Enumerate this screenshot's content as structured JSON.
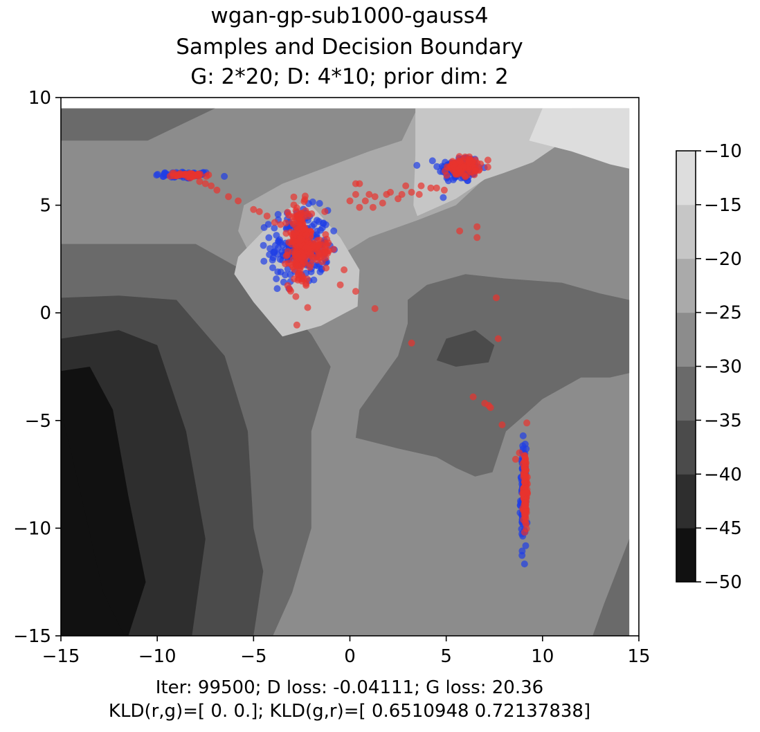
{
  "chart_data": {
    "type": "scatter",
    "title_lines": [
      "wgan-gp-sub1000-gauss4",
      "Samples and Decision Boundary",
      "G: 2*20; D: 4*10; prior dim: 2"
    ],
    "xlim": [
      -15,
      15
    ],
    "ylim": [
      -15,
      10
    ],
    "x_ticks": [
      -15,
      -10,
      -5,
      0,
      5,
      10,
      15
    ],
    "y_ticks": [
      -15,
      -10,
      -5,
      0,
      5,
      10
    ],
    "x_tick_labels": [
      "−15",
      "−10",
      "−5",
      "0",
      "5",
      "10",
      "15"
    ],
    "y_tick_labels": [
      "−15",
      "−10",
      "−5",
      "0",
      "5",
      "10"
    ],
    "grid": false,
    "footer_lines": [
      "Iter: 99500; D loss: -0.04111; G loss: 20.36",
      "KLD(r,g)=[ 0.  0.]; KLD(g,r)=[ 0.6510948   0.72137838]"
    ],
    "contour": {
      "levels": [
        -50,
        -45,
        -40,
        -35,
        -30,
        -25,
        -20,
        -15,
        -10
      ],
      "colors": [
        "#111111",
        "#2e2e2e",
        "#4b4b4b",
        "#6a6a6a",
        "#8c8c8c",
        "#aaaaaa",
        "#c6c6c6",
        "#dddddd",
        "#f0f0f0"
      ],
      "colorbar_ticks": [
        -50,
        -45,
        -40,
        -35,
        -30,
        -25,
        -20,
        -15,
        -10
      ],
      "colorbar_tick_labels": [
        "−50",
        "−45",
        "−40",
        "−35",
        "−30",
        "−25",
        "−20",
        "−15",
        "−10"
      ],
      "regions": [
        {
          "value": -27.5,
          "points": [
            [
              -15,
              9.5
            ],
            [
              14.5,
              9.5
            ],
            [
              14.5,
              -15
            ],
            [
              -15,
              -15
            ]
          ]
        },
        {
          "value": -32.5,
          "points": [
            [
              -15,
              9.5
            ],
            [
              -7,
              9.5
            ],
            [
              -10.5,
              8
            ],
            [
              -15,
              8
            ]
          ]
        },
        {
          "value": -32.5,
          "points": [
            [
              -15,
              3.2
            ],
            [
              -8,
              3.2
            ],
            [
              -6,
              2.2
            ],
            [
              -4.5,
              1.5
            ],
            [
              -2,
              -1
            ],
            [
              -1,
              -2.5
            ],
            [
              -2,
              -5.5
            ],
            [
              -2,
              -10
            ],
            [
              -3,
              -13
            ],
            [
              -4,
              -15
            ],
            [
              -15,
              -15
            ]
          ]
        },
        {
          "value": -37.5,
          "points": [
            [
              -15,
              0.7
            ],
            [
              -12,
              0.8
            ],
            [
              -9,
              0.6
            ],
            [
              -6.5,
              -2
            ],
            [
              -5.3,
              -5.5
            ],
            [
              -5,
              -10
            ],
            [
              -4.5,
              -12
            ],
            [
              -5,
              -15
            ],
            [
              -15,
              -15
            ]
          ]
        },
        {
          "value": -42.5,
          "points": [
            [
              -15,
              -1.2
            ],
            [
              -12,
              -0.8
            ],
            [
              -10,
              -1.5
            ],
            [
              -8.5,
              -5.5
            ],
            [
              -7.5,
              -10.5
            ],
            [
              -8.2,
              -15
            ],
            [
              -15,
              -15
            ]
          ]
        },
        {
          "value": -47.5,
          "points": [
            [
              -15,
              -2.7
            ],
            [
              -13.5,
              -2.5
            ],
            [
              -12.3,
              -4.5
            ],
            [
              -11.5,
              -8.5
            ],
            [
              -10.6,
              -12.5
            ],
            [
              -11.5,
              -15
            ],
            [
              -15,
              -15
            ]
          ]
        },
        {
          "value": -50,
          "points": [
            [
              -15,
              -4.5
            ],
            [
              -14.2,
              -7.5
            ],
            [
              -12.8,
              -13
            ],
            [
              -11.7,
              -15
            ],
            [
              -15,
              -15
            ]
          ]
        },
        {
          "value": -32.5,
          "points": [
            [
              3,
              -0.5
            ],
            [
              2.5,
              -2
            ],
            [
              0.5,
              -4.5
            ],
            [
              0.3,
              -5.8
            ],
            [
              2.5,
              -6.3
            ],
            [
              4.5,
              -6.7
            ],
            [
              5.5,
              -7.2
            ],
            [
              6.5,
              -7.6
            ],
            [
              7.4,
              -7.4
            ],
            [
              8.1,
              -5.5
            ],
            [
              9,
              -4.8
            ],
            [
              10,
              -4
            ],
            [
              12,
              -3
            ],
            [
              13.5,
              -3
            ],
            [
              14.5,
              -2.8
            ],
            [
              14.5,
              0.6
            ],
            [
              13,
              0.9
            ],
            [
              11,
              1.4
            ],
            [
              8,
              1.6
            ],
            [
              6,
              1.8
            ],
            [
              4,
              1.3
            ],
            [
              3,
              0.6
            ]
          ]
        },
        {
          "value": -37.5,
          "points": [
            [
              4.5,
              -2.2
            ],
            [
              5,
              -1.2
            ],
            [
              6.5,
              -0.8
            ],
            [
              7.5,
              -1.5
            ],
            [
              7.2,
              -2.3
            ],
            [
              5.5,
              -2.5
            ]
          ]
        },
        {
          "value": -32.5,
          "points": [
            [
              14.5,
              -10.5
            ],
            [
              13.2,
              -13.5
            ],
            [
              12.6,
              -15
            ],
            [
              14.5,
              -15
            ]
          ]
        },
        {
          "value": -22.5,
          "points": [
            [
              -5.5,
              5
            ],
            [
              -3.5,
              6
            ],
            [
              -2,
              6.5
            ],
            [
              1,
              7.5
            ],
            [
              2.7,
              8
            ],
            [
              3.5,
              9.5
            ],
            [
              9.2,
              9.5
            ],
            [
              9,
              8.5
            ],
            [
              7.5,
              7.8
            ],
            [
              7.3,
              6.5
            ],
            [
              5.5,
              5
            ],
            [
              3.5,
              4.3
            ],
            [
              1,
              3.5
            ],
            [
              -1,
              2.4
            ],
            [
              -3,
              1.5
            ],
            [
              -4.5,
              1.5
            ],
            [
              -5.8,
              3.8
            ]
          ]
        },
        {
          "value": -17.5,
          "points": [
            [
              -4.5,
              3.8
            ],
            [
              -3.3,
              4.8
            ],
            [
              -2.2,
              5.2
            ],
            [
              -1.8,
              4.8
            ],
            [
              -0.5,
              3.5
            ],
            [
              0.5,
              2
            ],
            [
              0.4,
              0.3
            ],
            [
              -1.5,
              -0.6
            ],
            [
              -3.5,
              -1.1
            ],
            [
              -5,
              0.5
            ],
            [
              -6,
              1.8
            ],
            [
              -5.8,
              2.6
            ]
          ]
        },
        {
          "value": -17.5,
          "points": [
            [
              3.4,
              9.5
            ],
            [
              11.5,
              9.5
            ],
            [
              11.5,
              8.5
            ],
            [
              10.8,
              7.8
            ],
            [
              9.5,
              7
            ],
            [
              8,
              6.5
            ],
            [
              7,
              6.2
            ],
            [
              5.5,
              5.3
            ],
            [
              3.5,
              4.5
            ],
            [
              3.3,
              5
            ],
            [
              3.4,
              7.3
            ]
          ]
        },
        {
          "value": -12.5,
          "points": [
            [
              10,
              9.5
            ],
            [
              14.5,
              9.5
            ],
            [
              14.5,
              6.7
            ],
            [
              13.5,
              6.9
            ],
            [
              11.5,
              7.5
            ],
            [
              9.3,
              8
            ]
          ]
        }
      ]
    },
    "series": [
      {
        "color": "#1f3fe6",
        "clusters": [
          {
            "cx": -8.6,
            "cy": 6.4,
            "sx": 0.75,
            "sy": 0.08,
            "n": 70
          },
          {
            "cx": 5.7,
            "cy": 6.7,
            "sx": 0.55,
            "sy": 0.32,
            "n": 110
          },
          {
            "cx": -2.6,
            "cy": 3.1,
            "sx": 0.75,
            "sy": 0.85,
            "n": 200
          },
          {
            "cx": 9,
            "cy": -8.5,
            "sx": 0.07,
            "sy": 1.1,
            "n": 110
          }
        ]
      },
      {
        "color": "#e8332e",
        "clusters": [
          {
            "cx": -8.3,
            "cy": 6.4,
            "sx": 0.5,
            "sy": 0.05,
            "n": 45
          },
          {
            "cx": 5.9,
            "cy": 6.8,
            "sx": 0.42,
            "sy": 0.22,
            "n": 90
          },
          {
            "cx": -2.6,
            "cy": 3.1,
            "sx": 0.3,
            "sy": 0.95,
            "n": 190
          },
          {
            "cx": -1.7,
            "cy": 3.0,
            "sx": 0.5,
            "sy": 0.35,
            "n": 50
          },
          {
            "cx": 9.1,
            "cy": -8.2,
            "sx": 0.05,
            "sy": 0.9,
            "n": 110
          }
        ],
        "points": [
          [
            -7.8,
            6.1
          ],
          [
            -7.5,
            6.0
          ],
          [
            -7.2,
            5.9
          ],
          [
            -6.9,
            5.7
          ],
          [
            -6.3,
            5.4
          ],
          [
            -5.8,
            5.2
          ],
          [
            -5,
            4.8
          ],
          [
            -4.7,
            4.7
          ],
          [
            -4.3,
            4.5
          ],
          [
            -3.9,
            4.2
          ],
          [
            -3.6,
            4.1
          ],
          [
            -1.3,
            4.7
          ],
          [
            0.0,
            5.2
          ],
          [
            0.3,
            5.5
          ],
          [
            0.3,
            6.0
          ],
          [
            0.5,
            6.0
          ],
          [
            0.5,
            4.9
          ],
          [
            0.8,
            5.2
          ],
          [
            1.0,
            5.5
          ],
          [
            1.2,
            4.9
          ],
          [
            1.3,
            5.4
          ],
          [
            1.7,
            5.1
          ],
          [
            1.9,
            5.5
          ],
          [
            2.1,
            5.6
          ],
          [
            2.5,
            5.3
          ],
          [
            2.7,
            5.5
          ],
          [
            2.9,
            5.9
          ],
          [
            3.2,
            5.6
          ],
          [
            3.6,
            5.5
          ],
          [
            3.7,
            5.9
          ],
          [
            4.2,
            5.8
          ],
          [
            4.5,
            5.8
          ],
          [
            4.9,
            5.7
          ],
          [
            5.7,
            3.8
          ],
          [
            6.6,
            4.0
          ],
          [
            6.6,
            3.5
          ],
          [
            7.6,
            0.7
          ],
          [
            7.7,
            -1.2
          ],
          [
            0.3,
            1.0
          ],
          [
            1.3,
            0.2
          ],
          [
            3.2,
            -1.4
          ],
          [
            -0.5,
            1.3
          ],
          [
            -0.3,
            2.0
          ],
          [
            6.4,
            -3.9
          ],
          [
            7.0,
            -4.2
          ],
          [
            7.2,
            -4.3
          ],
          [
            7.3,
            -4.4
          ],
          [
            7.9,
            -5.2
          ],
          [
            8.6,
            -6.8
          ],
          [
            8.8,
            -6.5
          ]
        ]
      }
    ]
  }
}
